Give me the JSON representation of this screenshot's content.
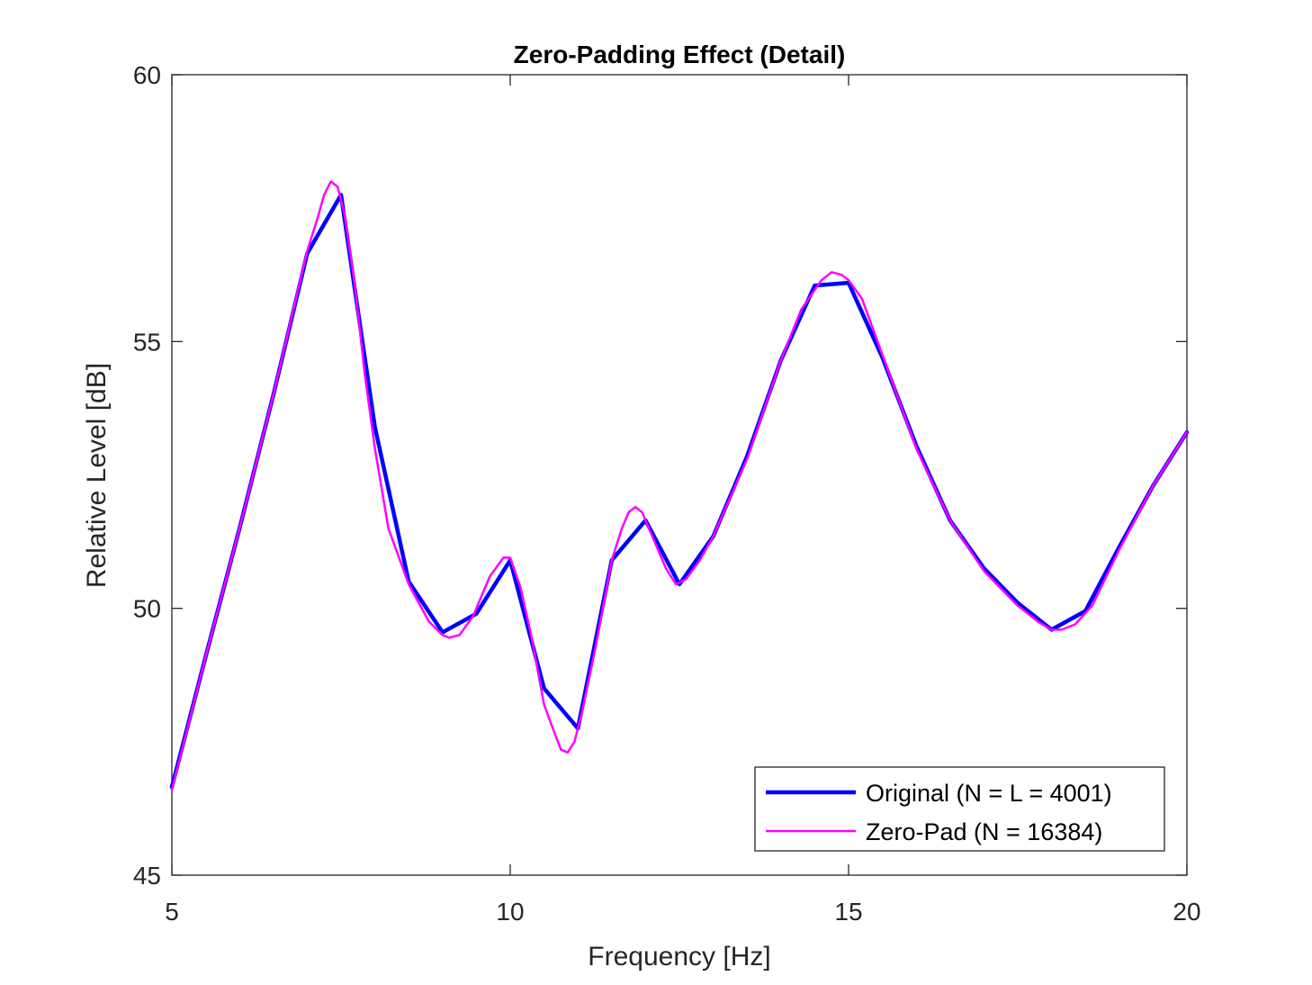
{
  "chart_data": {
    "type": "line",
    "title": "Zero-Padding Effect (Detail)",
    "xlabel": "Frequency [Hz]",
    "ylabel": "Relative Level [dB]",
    "xlim": [
      5,
      20
    ],
    "ylim": [
      45,
      60
    ],
    "xticks": [
      5,
      10,
      15,
      20
    ],
    "yticks": [
      45,
      50,
      55,
      60
    ],
    "x_tick_labels": [
      "5",
      "10",
      "15",
      "20"
    ],
    "y_tick_labels": [
      "45",
      "50",
      "55",
      "60"
    ],
    "grid": false,
    "box": true,
    "legend_position": "bottom-right",
    "series": [
      {
        "name": "Original (N = L = 4001)",
        "color": "#0000FF",
        "x": [
          5.0,
          5.5,
          6.0,
          6.5,
          7.0,
          7.5,
          8.0,
          8.5,
          9.0,
          9.5,
          10.0,
          10.5,
          11.0,
          11.5,
          12.0,
          12.5,
          13.0,
          13.5,
          14.0,
          14.5,
          15.0,
          15.5,
          16.0,
          16.5,
          17.0,
          17.5,
          18.0,
          18.5,
          19.0,
          19.5,
          20.0
        ],
        "y": [
          46.65,
          49.1,
          51.5,
          54.0,
          56.65,
          57.75,
          53.4,
          50.5,
          49.55,
          49.9,
          50.9,
          48.5,
          47.75,
          50.9,
          51.65,
          50.45,
          51.35,
          52.85,
          54.65,
          56.05,
          56.1,
          54.7,
          53.05,
          51.65,
          50.75,
          50.1,
          49.6,
          49.95,
          51.15,
          52.3,
          53.3
        ]
      },
      {
        "name": "Zero-Pad (N = 16384)",
        "color": "#FF00FF",
        "x": [
          5.0,
          5.5,
          6.0,
          6.5,
          7.0,
          7.15,
          7.25,
          7.35,
          7.45,
          7.55,
          7.7,
          7.85,
          8.0,
          8.2,
          8.5,
          8.8,
          9.0,
          9.1,
          9.25,
          9.45,
          9.7,
          9.9,
          10.0,
          10.15,
          10.3,
          10.5,
          10.6,
          10.75,
          10.85,
          10.95,
          11.05,
          11.25,
          11.5,
          11.65,
          11.75,
          11.85,
          11.95,
          12.1,
          12.3,
          12.45,
          12.6,
          12.8,
          13.0,
          13.5,
          14.0,
          14.3,
          14.6,
          14.75,
          14.9,
          15.0,
          15.2,
          15.5,
          16.0,
          16.5,
          17.0,
          17.5,
          17.8,
          18.0,
          18.15,
          18.35,
          18.6,
          19.0,
          19.5,
          20.0
        ],
        "y": [
          46.6,
          49.1,
          51.5,
          54.0,
          56.7,
          57.3,
          57.75,
          58.0,
          57.9,
          57.4,
          56.1,
          54.4,
          53.0,
          51.5,
          50.45,
          49.75,
          49.5,
          49.45,
          49.5,
          49.85,
          50.6,
          50.95,
          50.95,
          50.4,
          49.55,
          48.2,
          47.85,
          47.35,
          47.3,
          47.5,
          48.0,
          49.2,
          50.9,
          51.5,
          51.8,
          51.9,
          51.8,
          51.35,
          50.75,
          50.45,
          50.55,
          50.9,
          51.35,
          52.8,
          54.65,
          55.6,
          56.15,
          56.3,
          56.25,
          56.15,
          55.8,
          54.75,
          53.0,
          51.65,
          50.7,
          50.05,
          49.75,
          49.6,
          49.6,
          49.7,
          50.05,
          51.1,
          52.3,
          53.3
        ]
      }
    ]
  }
}
